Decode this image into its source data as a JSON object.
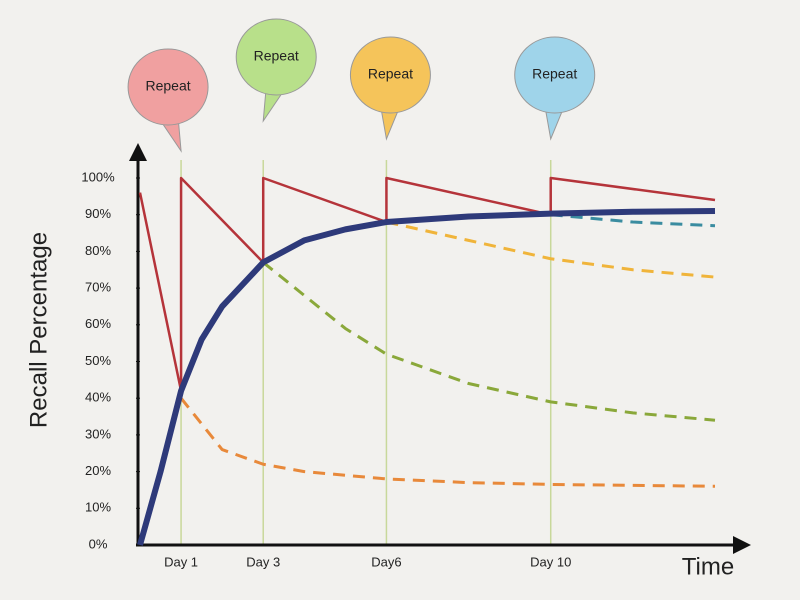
{
  "chart_data": {
    "type": "line",
    "y_label": "Recall Percentage",
    "x_label": "Time",
    "xlim": [
      0,
      14
    ],
    "ylim": [
      0,
      100
    ],
    "xticks": [
      {
        "value": 1,
        "label": "Day 1"
      },
      {
        "value": 3,
        "label": "Day 3"
      },
      {
        "value": 6,
        "label": "Day6"
      },
      {
        "value": 10,
        "label": "Day 10"
      }
    ],
    "yticks": [
      {
        "value": 0,
        "label": "0%"
      },
      {
        "value": 10,
        "label": "10%"
      },
      {
        "value": 20,
        "label": "20%"
      },
      {
        "value": 30,
        "label": "30%"
      },
      {
        "value": 40,
        "label": "40%"
      },
      {
        "value": 50,
        "label": "50%"
      },
      {
        "value": 60,
        "label": "60%"
      },
      {
        "value": 70,
        "label": "70%"
      },
      {
        "value": 80,
        "label": "80%"
      },
      {
        "value": 90,
        "label": "90%"
      },
      {
        "value": 100,
        "label": "100%"
      }
    ],
    "series": [
      {
        "color": "#b5343a",
        "style": "solid",
        "x": [
          0,
          1,
          1,
          3,
          3,
          6,
          6,
          10,
          10,
          14
        ],
        "values": [
          96,
          42,
          100,
          77,
          100,
          88,
          100,
          90,
          100,
          94
        ]
      },
      {
        "color": "#e8893a",
        "style": "dashed",
        "x": [
          1,
          2,
          3,
          4,
          6,
          8,
          10,
          14
        ],
        "values": [
          40,
          26,
          22,
          20,
          18,
          17,
          16.5,
          16
        ]
      },
      {
        "color": "#8aa83a",
        "style": "dashed",
        "x": [
          3,
          4,
          5,
          6,
          8,
          10,
          12,
          14
        ],
        "values": [
          77,
          68,
          59,
          52,
          44,
          39,
          36,
          34
        ]
      },
      {
        "color": "#f0b43a",
        "style": "dashed",
        "x": [
          6,
          8,
          10,
          12,
          14
        ],
        "values": [
          88,
          83,
          78,
          75,
          73
        ]
      },
      {
        "color": "#3a8ca0",
        "style": "dashed",
        "x": [
          10,
          12,
          14
        ],
        "values": [
          90,
          88,
          87
        ]
      },
      {
        "color": "#2e3a7a",
        "style": "thick",
        "x": [
          0,
          0.5,
          1,
          1.5,
          2,
          3,
          4,
          5,
          6,
          8,
          10,
          12,
          14
        ],
        "values": [
          0,
          20,
          42,
          56,
          65,
          77,
          83,
          86,
          88,
          89.5,
          90.3,
          90.8,
          91
        ]
      }
    ],
    "annotations": [
      {
        "text": "Repeat",
        "x": 1,
        "color": "#f0a0a0"
      },
      {
        "text": "Repeat",
        "x": 3,
        "color": "#b8e08a"
      },
      {
        "text": "Repeat",
        "x": 6,
        "color": "#f5c45a"
      },
      {
        "text": "Repeat",
        "x": 10,
        "color": "#9fd4ea"
      }
    ]
  }
}
